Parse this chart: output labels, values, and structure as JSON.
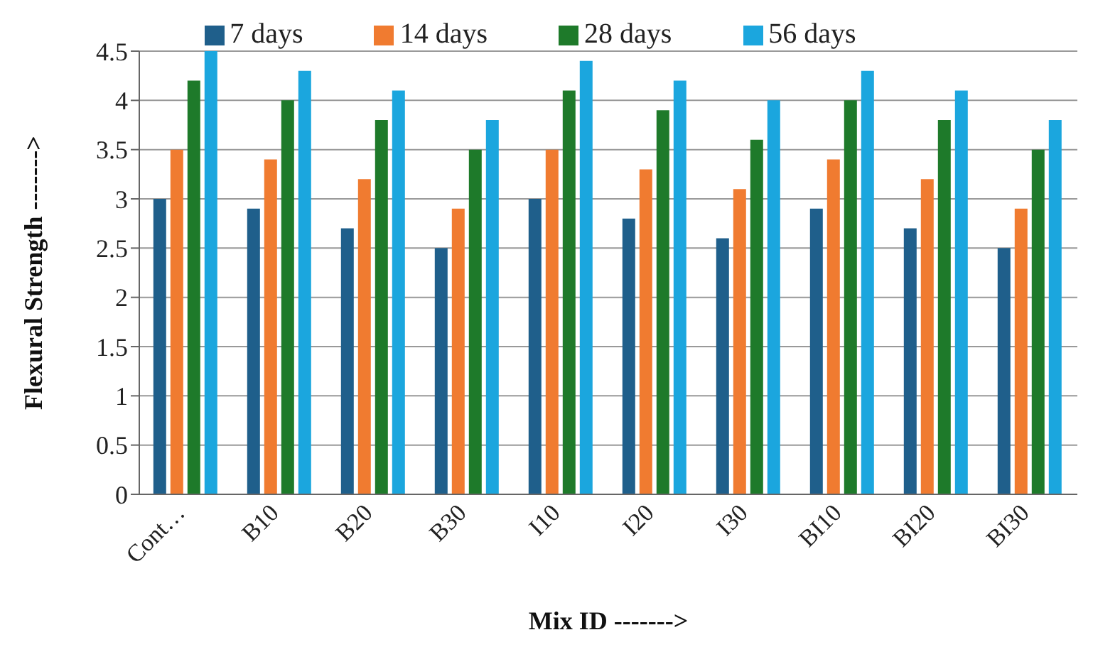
{
  "chart_data": {
    "type": "bar",
    "xlabel": "Mix ID ------->",
    "ylabel": "Flexural Strength ------->",
    "categories": [
      "Cont…",
      "B10",
      "B20",
      "B30",
      "I10",
      "I20",
      "I30",
      "BI10",
      "BI20",
      "BI30"
    ],
    "series": [
      {
        "name": "7 days",
        "color": "#1f5f8b",
        "values": [
          3.0,
          2.9,
          2.7,
          2.5,
          3.0,
          2.8,
          2.6,
          2.9,
          2.7,
          2.5
        ]
      },
      {
        "name": "14 days",
        "color": "#f07b30",
        "values": [
          3.5,
          3.4,
          3.2,
          2.9,
          3.5,
          3.3,
          3.1,
          3.4,
          3.2,
          2.9
        ]
      },
      {
        "name": "28 days",
        "color": "#1e7a2a",
        "values": [
          4.2,
          4.0,
          3.8,
          3.5,
          4.1,
          3.9,
          3.6,
          4.0,
          3.8,
          3.5
        ]
      },
      {
        "name": "56 days",
        "color": "#1ba6de",
        "values": [
          4.5,
          4.3,
          4.1,
          3.8,
          4.4,
          4.2,
          4.0,
          4.3,
          4.1,
          3.8
        ]
      }
    ],
    "ylim": [
      0,
      4.5
    ],
    "yticks": [
      0,
      0.5,
      1,
      1.5,
      2,
      2.5,
      3,
      3.5,
      4,
      4.5
    ],
    "grid": "y",
    "legend": "top"
  }
}
